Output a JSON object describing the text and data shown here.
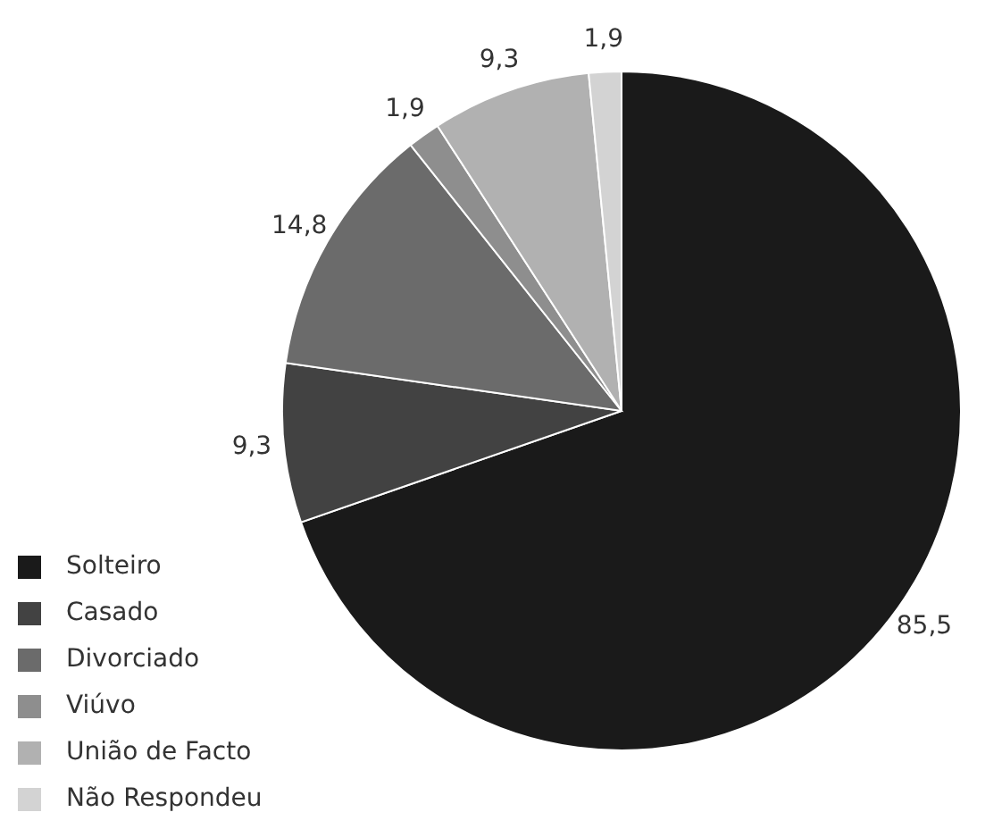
{
  "chart_data": {
    "type": "pie",
    "categories": [
      "Solteiro",
      "Casado",
      "Divorciado",
      "Viúvo",
      "União de Facto",
      "Não Respondeu"
    ],
    "values": [
      85.5,
      9.3,
      14.8,
      1.9,
      9.3,
      1.9
    ],
    "value_labels": [
      "85,5",
      "9,3",
      "14,8",
      "1,9",
      "9,3",
      "1,9"
    ],
    "colors": [
      "#1a1a1a",
      "#424242",
      "#6b6b6b",
      "#8e8e8e",
      "#b1b1b1",
      "#d3d3d3"
    ],
    "legend": "bottom left"
  }
}
